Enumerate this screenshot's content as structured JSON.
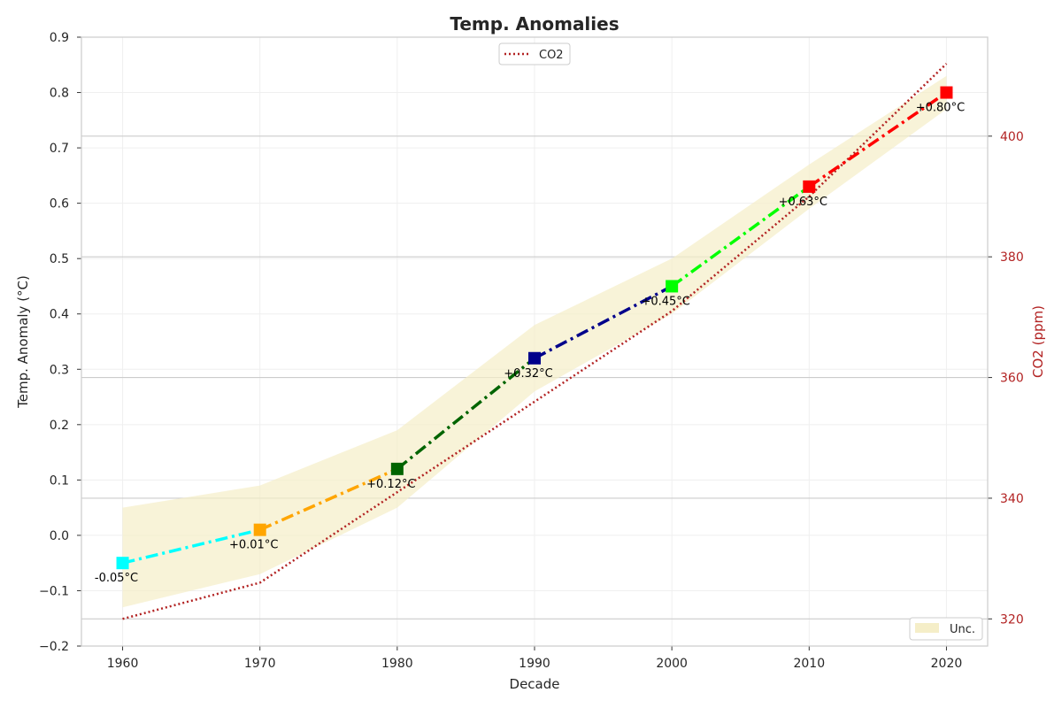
{
  "chart_data": {
    "type": "line",
    "title": "Temp. Anomalies",
    "xlabel": "Decade",
    "ylabel": "Temp. Anomaly (°C)",
    "y2label": "CO2 (ppm)",
    "x": [
      1960,
      1970,
      1980,
      1990,
      2000,
      2010,
      2020
    ],
    "xlim": [
      1957,
      2023
    ],
    "ylim": [
      -0.2,
      0.9
    ],
    "y2lim": [
      315.5,
      416.4
    ],
    "x_ticks": [
      "1960",
      "1970",
      "1980",
      "1990",
      "2000",
      "2010",
      "2020"
    ],
    "y_ticks": [
      "−0.2",
      "−0.1",
      "0.0",
      "0.1",
      "0.2",
      "0.3",
      "0.4",
      "0.5",
      "0.6",
      "0.7",
      "0.8",
      "0.9"
    ],
    "y2_ticks": [
      "320",
      "340",
      "360",
      "380",
      "400"
    ],
    "grid": true,
    "series": [
      {
        "name": "Temp. Anomaly",
        "axis": "left",
        "values": [
          -0.05,
          0.01,
          0.12,
          0.32,
          0.45,
          0.63,
          0.8
        ],
        "labels": [
          "-0.05°C",
          "+0.01°C",
          "+0.12°C",
          "+0.32°C",
          "+0.45°C",
          "+0.63°C",
          "+0.80°C"
        ],
        "marker_colors": [
          "#00ffff",
          "#ffa500",
          "#006400",
          "#00008b",
          "#00ff00",
          "#ff0000",
          "#ff0000"
        ],
        "line_style": "dashdot",
        "marker": "square"
      },
      {
        "name": "CO2",
        "axis": "right",
        "values": [
          320,
          326,
          341,
          356,
          371,
          390,
          412
        ],
        "color": "#b22222",
        "line_style": "dotted"
      }
    ],
    "uncertainty_band": {
      "name": "Unc.",
      "upper": [
        0.05,
        0.09,
        0.19,
        0.38,
        0.5,
        0.67,
        0.83
      ],
      "lower": [
        -0.13,
        -0.07,
        0.05,
        0.26,
        0.4,
        0.59,
        0.77
      ],
      "color": "#f5eec8"
    },
    "legends": [
      {
        "placement": "top-center",
        "entries": [
          "CO2"
        ]
      },
      {
        "placement": "bottom-right",
        "entries": [
          "Unc."
        ]
      }
    ]
  }
}
